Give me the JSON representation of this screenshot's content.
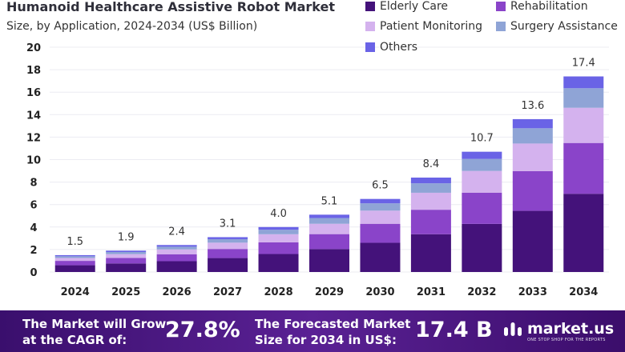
{
  "chart_data": {
    "type": "stacked_bar",
    "title": "Humanoid Healthcare Assistive Robot Market",
    "subtitle": "Size, by Application, 2024-2034 (US$ Billion)",
    "xlabel": "",
    "ylabel": "",
    "ylim": [
      0,
      20
    ],
    "yticks": [
      "0",
      "2",
      "4",
      "6",
      "8",
      "10",
      "12",
      "14",
      "16",
      "18",
      "20"
    ],
    "categories": [
      "2024",
      "2025",
      "2026",
      "2027",
      "2028",
      "2029",
      "2030",
      "2031",
      "2032",
      "2033",
      "2034"
    ],
    "totals": [
      1.5,
      1.9,
      2.4,
      3.1,
      4.0,
      5.1,
      6.5,
      8.4,
      10.7,
      13.6,
      17.4
    ],
    "total_labels": [
      "1.5",
      "1.9",
      "2.4",
      "3.1",
      "4.0",
      "5.1",
      "6.5",
      "8.4",
      "10.7",
      "13.6",
      "17.4"
    ],
    "series": [
      {
        "name": "Elderly Care",
        "color": "#44127a",
        "values": [
          0.6,
          0.76,
          0.96,
          1.24,
          1.6,
          2.04,
          2.6,
          3.36,
          4.28,
          5.44,
          6.96
        ]
      },
      {
        "name": "Rehabilitation",
        "color": "#8a44c9",
        "values": [
          0.39,
          0.49,
          0.62,
          0.81,
          1.04,
          1.33,
          1.69,
          2.18,
          2.78,
          3.54,
          4.52
        ]
      },
      {
        "name": "Patient Monitoring",
        "color": "#d4b2ee",
        "values": [
          0.26,
          0.34,
          0.43,
          0.56,
          0.72,
          0.92,
          1.17,
          1.51,
          1.93,
          2.45,
          3.13
        ]
      },
      {
        "name": "Surgery Assistance",
        "color": "#8fa4d6",
        "values": [
          0.15,
          0.19,
          0.24,
          0.31,
          0.4,
          0.51,
          0.65,
          0.84,
          1.07,
          1.36,
          1.74
        ]
      },
      {
        "name": "Others",
        "color": "#6a63e6",
        "values": [
          0.1,
          0.12,
          0.15,
          0.18,
          0.24,
          0.3,
          0.39,
          0.51,
          0.64,
          0.81,
          1.05
        ]
      }
    ]
  },
  "footer": {
    "cagr_text_line1": "The Market will Grow",
    "cagr_text_line2": "at the CAGR of:",
    "cagr_value": "27.8%",
    "forecast_text_line1": "The Forecasted Market",
    "forecast_text_line2": "Size for 2034 in US$:",
    "forecast_value": "17.4 B",
    "brand_name": "market.us",
    "brand_tagline": "ONE STOP SHOP FOR THE REPORTS"
  }
}
